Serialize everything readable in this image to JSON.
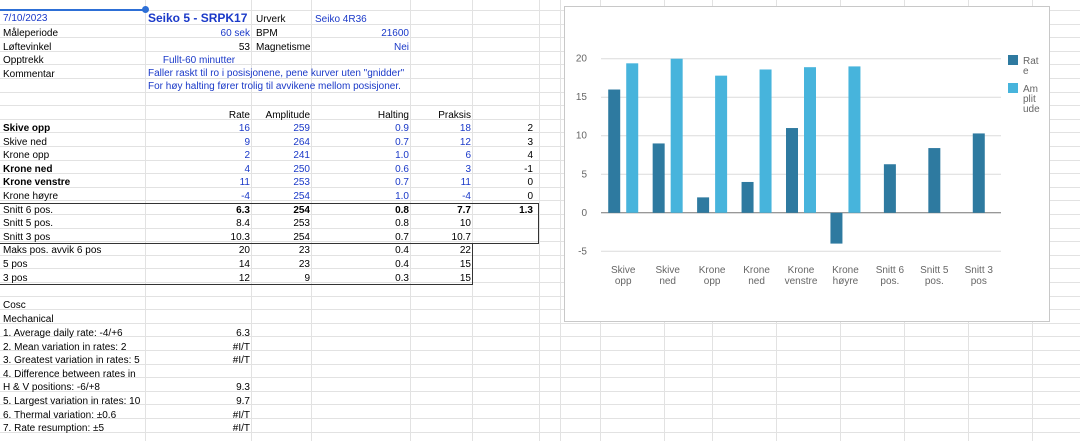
{
  "header": {
    "date": "7/10/2023",
    "watch_title": "Seiko 5 - SRPK17",
    "urverk_label": "Urverk",
    "urverk_value": "Seiko 4R36"
  },
  "info": {
    "maaleperiode_label": "Måleperiode",
    "maaleperiode_value": "60 sek",
    "bpm_label": "BPM",
    "bpm_value": "21600",
    "loftevinkel_label": "Løftevinkel",
    "loftevinkel_value": "53",
    "magnetisme_label": "Magnetisme",
    "magnetisme_value": "Nei",
    "opptrekk_label": "Opptrekk",
    "opptrekk_value": "Fullt-60 minutter",
    "kommentar_label": "Kommentar",
    "kommentar_line1": "Faller raskt til ro i posisjonene, pene kurver uten \"gnidder\"",
    "kommentar_line2": "For høy halting fører trolig til avvikene mellom posisjoner."
  },
  "table": {
    "headers": [
      "Rate",
      "Amplitude",
      "Halting",
      "Praksis"
    ],
    "rows": [
      {
        "label": "Skive opp",
        "rate": "16",
        "amp": "259",
        "halt": "0.9",
        "praksis": "18",
        "diff": "2"
      },
      {
        "label": "Skive ned",
        "rate": "9",
        "amp": "264",
        "halt": "0.7",
        "praksis": "12",
        "diff": "3"
      },
      {
        "label": "Krone opp",
        "rate": "2",
        "amp": "241",
        "halt": "1.0",
        "praksis": "6",
        "diff": "4"
      },
      {
        "label": "Krone ned",
        "rate": "4",
        "amp": "250",
        "halt": "0.6",
        "praksis": "3",
        "diff": "-1"
      },
      {
        "label": "Krone venstre",
        "rate": "11",
        "amp": "253",
        "halt": "0.7",
        "praksis": "11",
        "diff": "0"
      },
      {
        "label": "Krone høyre",
        "rate": "-4",
        "amp": "254",
        "halt": "1.0",
        "praksis": "-4",
        "diff": "0"
      }
    ],
    "snitt": [
      {
        "label": "Snitt 6 pos.",
        "rate": "6.3",
        "amp": "254",
        "halt": "0.8",
        "praksis": "7.7",
        "diff": "1.3"
      },
      {
        "label": "Snitt 5 pos.",
        "rate": "8.4",
        "amp": "253",
        "halt": "0.8",
        "praksis": "10",
        "diff": ""
      },
      {
        "label": "Snitt 3 pos",
        "rate": "10.3",
        "amp": "254",
        "halt": "0.7",
        "praksis": "10.7",
        "diff": ""
      }
    ],
    "maks": [
      {
        "label": "Maks pos. avvik 6 pos",
        "rate": "20",
        "amp": "23",
        "halt": "0.4",
        "praksis": "22"
      },
      {
        "label": "5 pos",
        "rate": "14",
        "amp": "23",
        "halt": "0.4",
        "praksis": "15"
      },
      {
        "label": "3 pos",
        "rate": "12",
        "amp": "9",
        "halt": "0.3",
        "praksis": "15"
      }
    ]
  },
  "cosc": {
    "title": "Cosc",
    "subtitle": "Mechanical",
    "items": [
      {
        "label": "1. Average daily rate: -4/+6",
        "value": "6.3"
      },
      {
        "label": "2. Mean variation in rates: 2",
        "value": "#I/T"
      },
      {
        "label": "3. Greatest variation in rates: 5",
        "value": "#I/T"
      },
      {
        "label": "4. Difference between rates in",
        "label2": "H & V positions: -6/+8",
        "value": "9.3"
      },
      {
        "label": "5. Largest variation in rates: 10",
        "value": "9.7"
      },
      {
        "label": "6. Thermal variation: ±0.6",
        "value": "#I/T"
      },
      {
        "label": "7. Rate resumption: ±5",
        "value": "#I/T"
      }
    ]
  },
  "colors": {
    "rate": "#2e7aa0",
    "amplitude": "#47b4dc",
    "title_blue": "#1a39c8"
  },
  "chart_data": {
    "type": "bar",
    "categories": [
      "Skive opp",
      "Skive ned",
      "Krone opp",
      "Krone ned",
      "Krone venstre",
      "Krone høyre",
      "Snitt 6 pos.",
      "Snitt 5 pos.",
      "Snitt 3 pos"
    ],
    "category_lines": [
      [
        "Skive",
        "opp"
      ],
      [
        "Skive",
        "ned"
      ],
      [
        "Krone",
        "opp"
      ],
      [
        "Krone",
        "ned"
      ],
      [
        "Krone",
        "venstre"
      ],
      [
        "Krone",
        "høyre"
      ],
      [
        "Snitt 6",
        "pos."
      ],
      [
        "Snitt 5",
        "pos."
      ],
      [
        "Snitt 3",
        "pos"
      ]
    ],
    "series": [
      {
        "name": "Rate",
        "values": [
          16,
          9,
          2,
          4,
          11,
          -4,
          6.3,
          8.4,
          10.3
        ],
        "color": "#2e7aa0"
      },
      {
        "name": "Amplitude",
        "values": [
          19.4,
          20,
          17.8,
          18.6,
          18.9,
          19.0,
          null,
          null,
          null
        ],
        "color": "#47b4dc"
      }
    ],
    "legend_lines": [
      [
        "Rat",
        "e"
      ],
      [
        "Am",
        "plit",
        "ude"
      ]
    ],
    "yticks": [
      -5,
      0,
      5,
      10,
      15,
      20
    ],
    "ylim": [
      -6,
      21
    ],
    "legend_position": "right",
    "grid": true
  }
}
